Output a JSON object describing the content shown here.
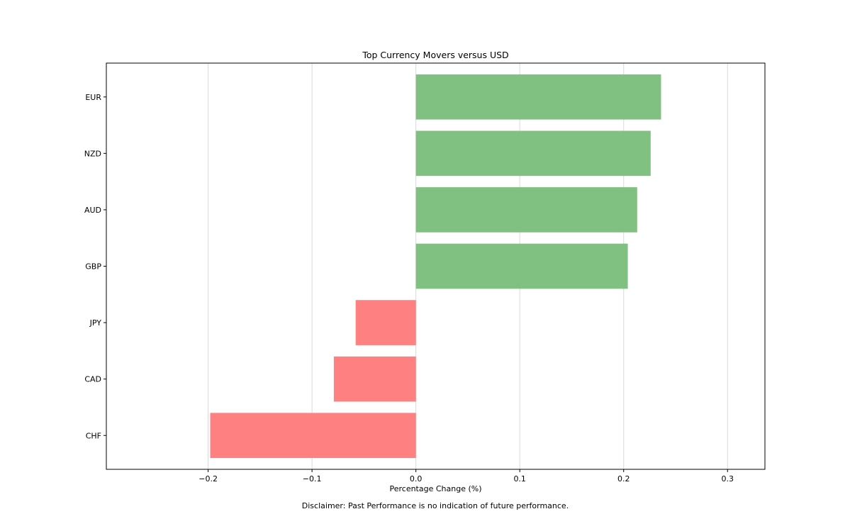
{
  "chart_data": {
    "type": "bar",
    "orientation": "horizontal",
    "title": "Top Currency Movers versus USD",
    "xlabel": "Percentage Change (%)",
    "ylabel": "",
    "xlim": [
      -0.298,
      0.336
    ],
    "xticks": [
      -0.2,
      -0.1,
      0.0,
      0.1,
      0.2,
      0.3
    ],
    "xtick_labels": [
      "−0.2",
      "−0.1",
      "0.0",
      "0.1",
      "0.2",
      "0.3"
    ],
    "grid": "vertical",
    "categories": [
      "EUR",
      "NZD",
      "AUD",
      "GBP",
      "JPY",
      "CAD",
      "CHF"
    ],
    "values": [
      0.236,
      0.226,
      0.213,
      0.204,
      -0.058,
      -0.079,
      -0.198
    ],
    "colors": {
      "positive": "#80c080",
      "negative": "#ff8080",
      "grid": "#d9d9d9",
      "frame": "#000000"
    }
  },
  "footer": {
    "disclaimer": "Disclaimer: Past Performance is no indication of future performance."
  }
}
